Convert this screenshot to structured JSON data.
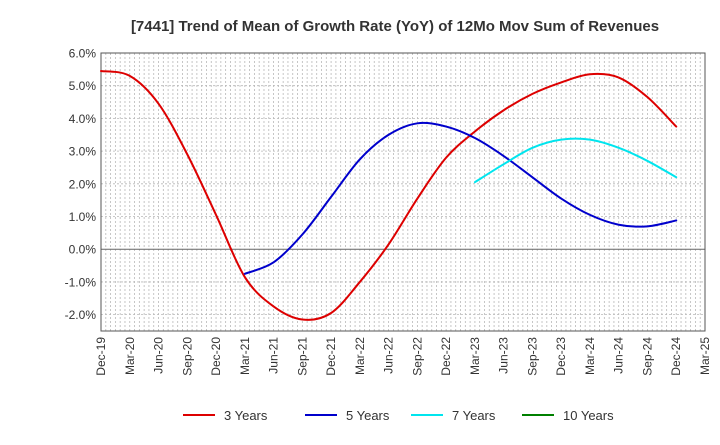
{
  "chart_data": {
    "type": "line",
    "title": "[7441]  Trend of Mean of Growth Rate (YoY) of 12Mo Mov Sum of Revenues",
    "xlabel": "",
    "ylabel": "",
    "ylim": [
      -2.5,
      6.0
    ],
    "y_ticks": [
      -2.0,
      -1.0,
      0.0,
      1.0,
      2.0,
      3.0,
      4.0,
      5.0,
      6.0
    ],
    "y_tick_labels": [
      "-2.0%",
      "-1.0%",
      "0.0%",
      "1.0%",
      "2.0%",
      "3.0%",
      "4.0%",
      "5.0%",
      "6.0%"
    ],
    "x_tick_labels": [
      "Dec-19",
      "Mar-20",
      "Jun-20",
      "Sep-20",
      "Dec-20",
      "Mar-21",
      "Jun-21",
      "Sep-21",
      "Dec-21",
      "Mar-22",
      "Jun-22",
      "Sep-22",
      "Dec-22",
      "Mar-23",
      "Jun-23",
      "Sep-23",
      "Dec-23",
      "Mar-24",
      "Jun-24",
      "Sep-24",
      "Dec-24",
      "Mar-25"
    ],
    "grid": true,
    "legend_position": "bottom",
    "series": [
      {
        "name": "3 Years",
        "color": "#dd0000",
        "start_index": 0,
        "values": [
          5.45,
          5.3,
          4.45,
          2.9,
          1.05,
          -0.85,
          -1.75,
          -2.15,
          -1.95,
          -1.0,
          0.15,
          1.55,
          2.8,
          3.6,
          4.25,
          4.75,
          5.1,
          5.35,
          5.25,
          4.65,
          3.75
        ]
      },
      {
        "name": "5 Years",
        "color": "#0000cc",
        "start_index": 5,
        "values": [
          -0.75,
          -0.4,
          0.45,
          1.6,
          2.75,
          3.5,
          3.85,
          3.75,
          3.4,
          2.85,
          2.2,
          1.55,
          1.05,
          0.75,
          0.7,
          0.88
        ]
      },
      {
        "name": "7 Years",
        "color": "#00e5ee",
        "start_index": 13,
        "values": [
          2.05,
          2.6,
          3.1,
          3.35,
          3.35,
          3.1,
          2.7,
          2.2
        ]
      },
      {
        "name": "10 Years",
        "color": "#008000",
        "start_index": 0,
        "values": []
      }
    ]
  }
}
